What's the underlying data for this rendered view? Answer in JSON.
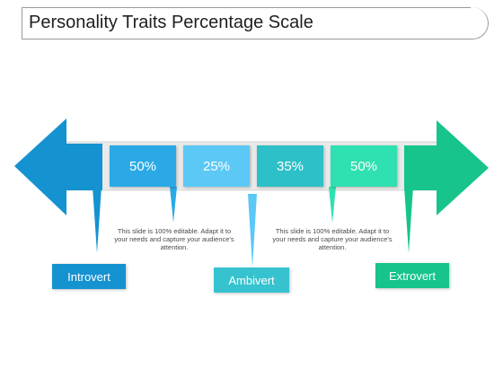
{
  "title": "Personality Traits Percentage Scale",
  "colors": {
    "blue_dark": "#1592d0",
    "blue_mid": "#2aa9e6",
    "blue_light": "#5bc8f5",
    "teal": "#2dc0c8",
    "green_light": "#2fe0b0",
    "green": "#16c48c"
  },
  "segments": [
    {
      "value": "50%",
      "color": "#2aa9e6"
    },
    {
      "value": "25%",
      "color": "#5bc8f5"
    },
    {
      "value": "35%",
      "color": "#2dc0c8"
    },
    {
      "value": "50%",
      "color": "#2fe0b0"
    }
  ],
  "notes": [
    "This slide is 100% editable. Adapt it to your needs and capture your audience's attention.",
    "This slide is 100% editable. Adapt it to your needs and capture your audience's attention."
  ],
  "labels": [
    {
      "text": "Introvert",
      "color": "#1592d0"
    },
    {
      "text": "Ambivert",
      "color": "#36c3cf"
    },
    {
      "text": "Extrovert",
      "color": "#16c48c"
    }
  ]
}
